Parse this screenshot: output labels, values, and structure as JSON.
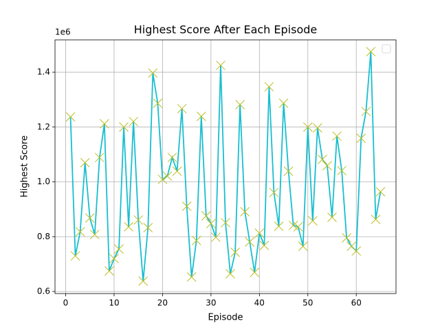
{
  "chart_data": {
    "type": "line",
    "title": "Highest Score After Each Episode",
    "x_label": "Episode",
    "y_label": "Highest Score",
    "y_offset_label": "1e6",
    "x": [
      1,
      2,
      3,
      4,
      5,
      6,
      7,
      8,
      9,
      10,
      11,
      12,
      13,
      14,
      15,
      16,
      17,
      18,
      19,
      20,
      21,
      22,
      23,
      24,
      25,
      26,
      27,
      28,
      29,
      30,
      31,
      32,
      33,
      34,
      35,
      36,
      37,
      38,
      39,
      40,
      41,
      42,
      43,
      44,
      45,
      46,
      47,
      48,
      49,
      50,
      51,
      52,
      53,
      54,
      55,
      56,
      57,
      58,
      59,
      60,
      61,
      62,
      63,
      64,
      65
    ],
    "series": [
      {
        "color": "#17becf",
        "marker_color": "#bcbd22",
        "values": [
          1.237,
          0.73,
          0.818,
          1.07,
          0.868,
          0.808,
          1.089,
          1.212,
          0.675,
          0.72,
          0.755,
          1.2,
          0.836,
          1.22,
          0.861,
          0.638,
          0.833,
          1.397,
          1.287,
          1.009,
          1.021,
          1.089,
          1.039,
          1.267,
          0.911,
          0.653,
          0.786,
          1.239,
          0.876,
          0.848,
          0.798,
          1.425,
          0.851,
          0.665,
          0.743,
          1.282,
          0.891,
          0.781,
          0.67,
          0.813,
          0.768,
          1.347,
          0.961,
          0.838,
          1.287,
          1.039,
          0.841,
          0.836,
          0.765,
          1.2,
          0.858,
          1.197,
          1.082,
          1.059,
          0.871,
          1.167,
          1.041,
          0.796,
          0.765,
          0.748,
          1.159,
          1.257,
          1.475,
          0.863,
          0.964
        ]
      }
    ],
    "xlim": [
      -2.2,
      68.2
    ],
    "ylim": [
      0.5925,
      1.518
    ],
    "xticks": [
      0,
      10,
      20,
      30,
      40,
      50,
      60
    ],
    "yticks": [
      0.6,
      0.8,
      {
        "value": 1,
        "label": "1.0"
      },
      1.2,
      1.4
    ],
    "grid": true,
    "legend": "upper right"
  }
}
